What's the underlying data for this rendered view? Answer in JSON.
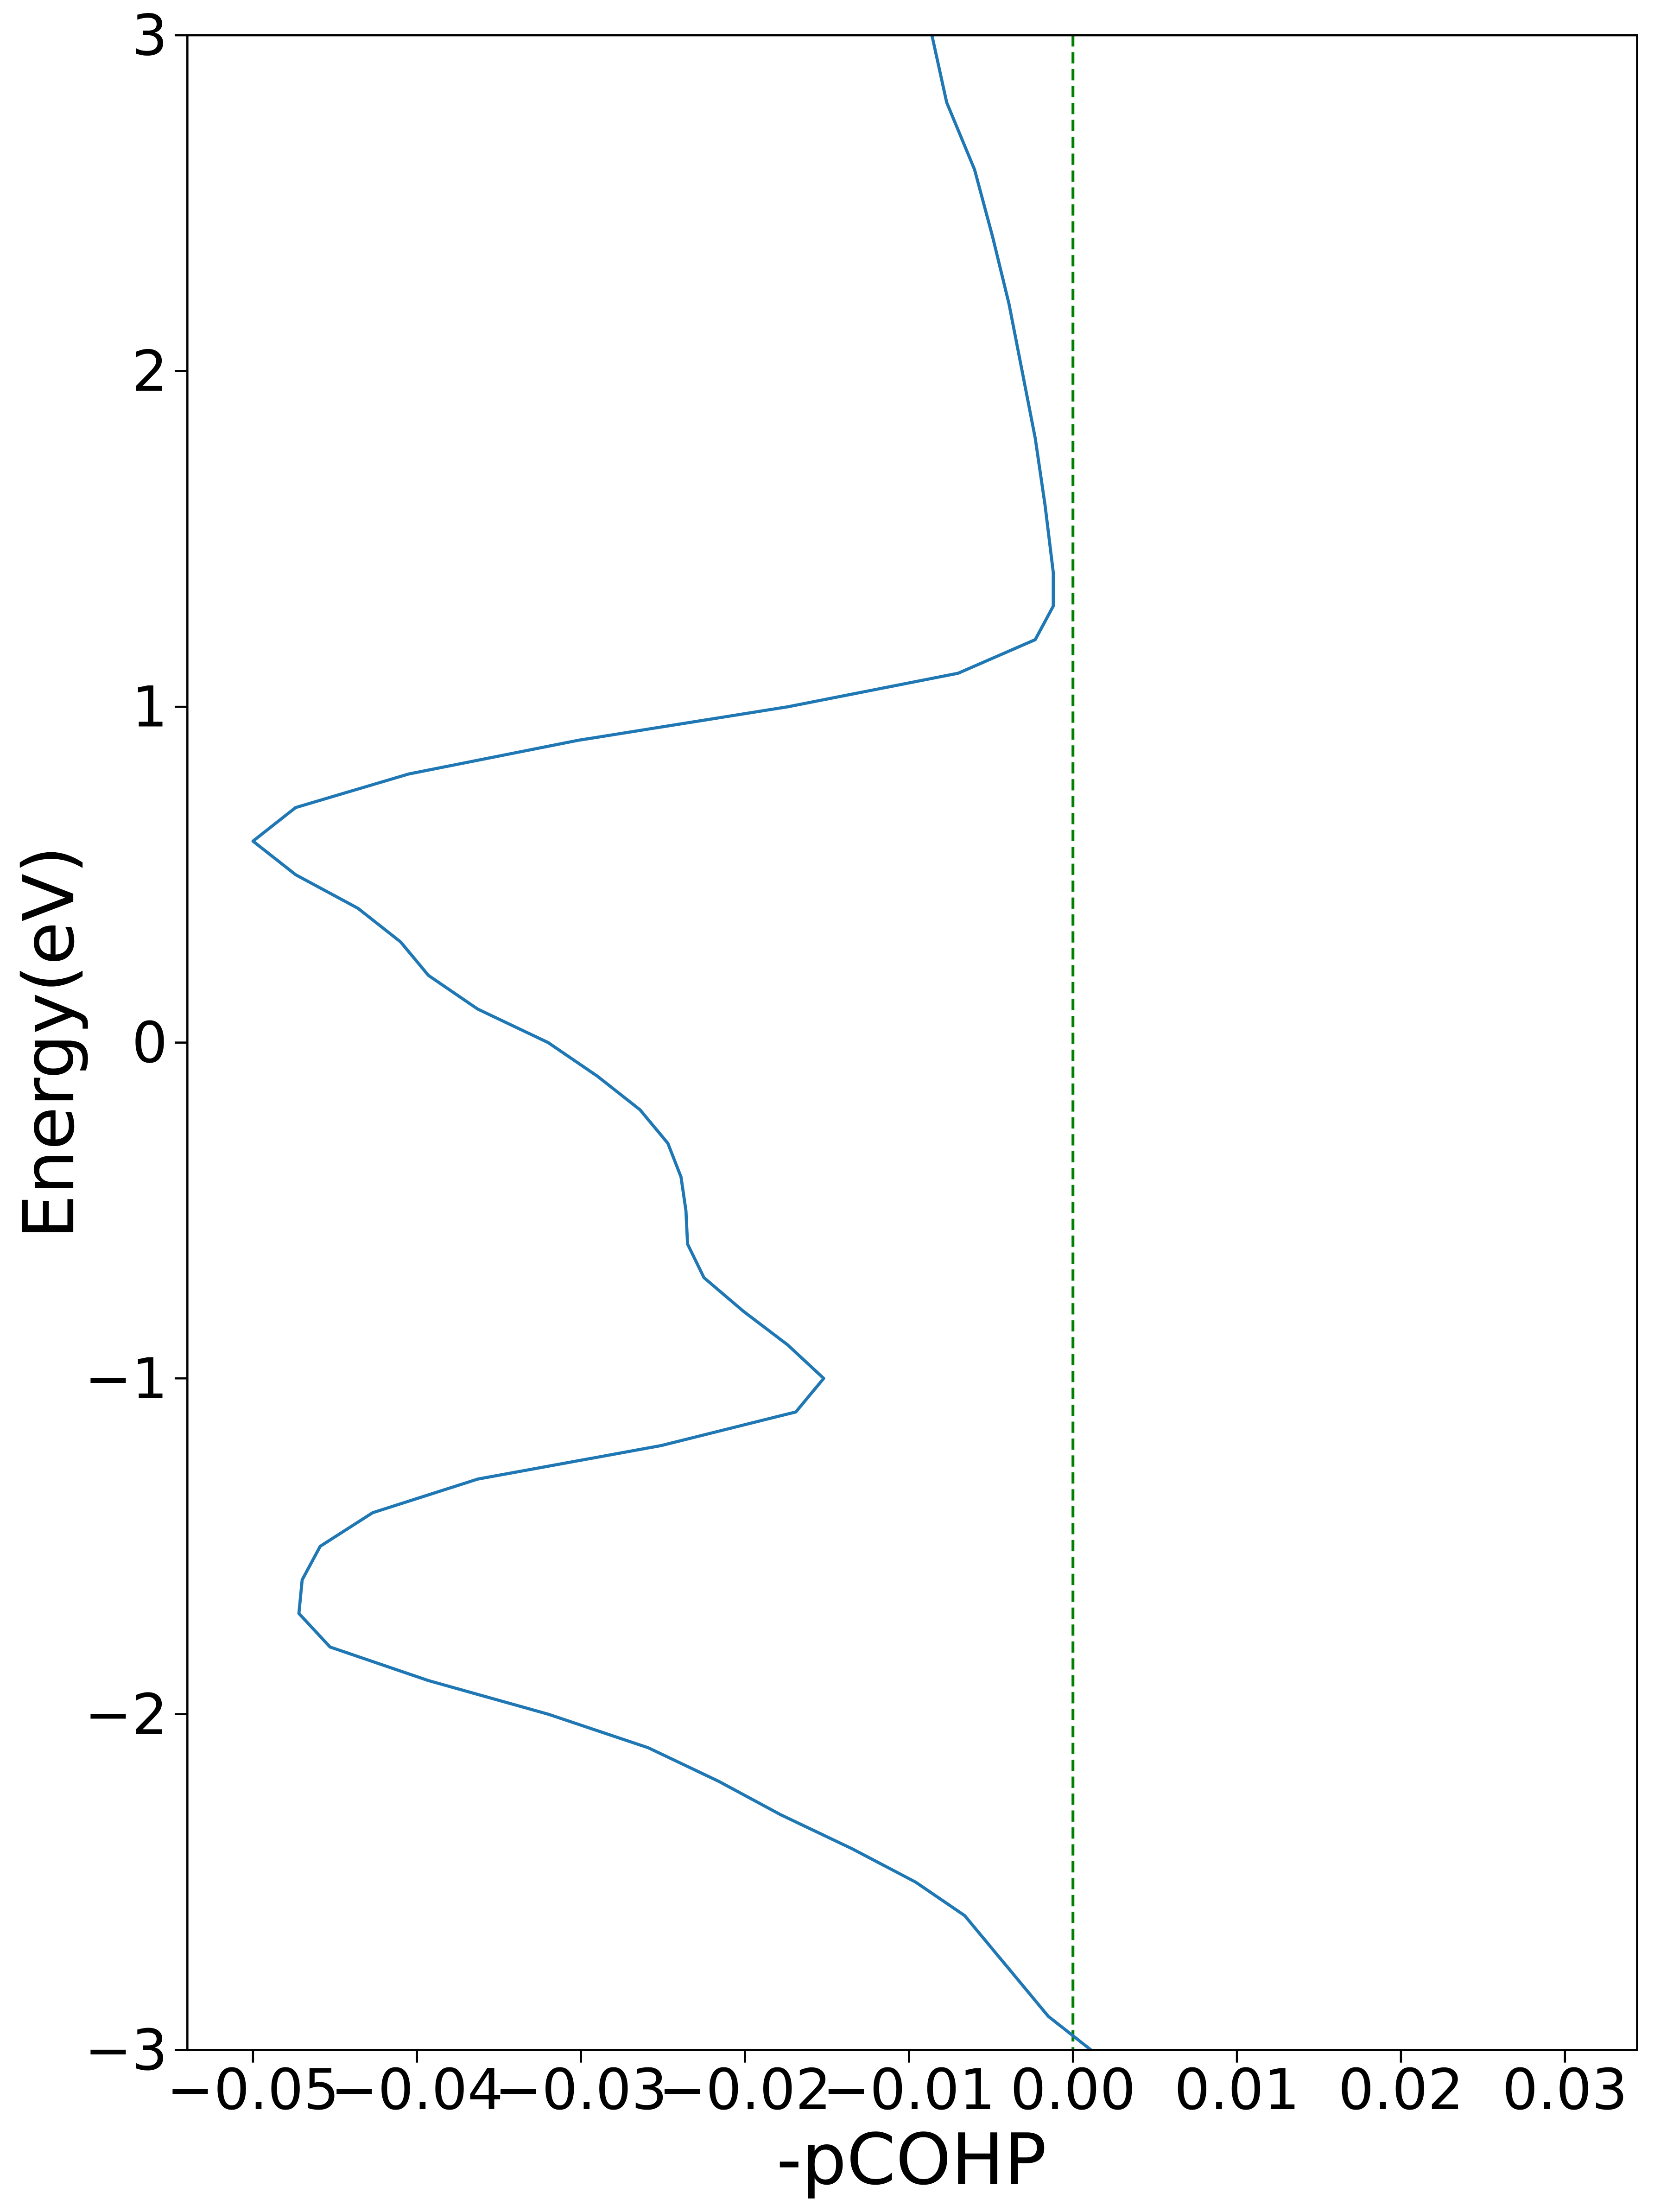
{
  "chart_data": {
    "type": "line",
    "xlabel": "-pCOHP",
    "ylabel": "Energy(eV)",
    "orientation": "horizontal",
    "energy": [
      3.0,
      2.8,
      2.6,
      2.4,
      2.2,
      2.0,
      1.8,
      1.6,
      1.4,
      1.3,
      1.2,
      1.1,
      1.0,
      0.9,
      0.8,
      0.7,
      0.6,
      0.5,
      0.4,
      0.3,
      0.2,
      0.1,
      0.0,
      -0.1,
      -0.2,
      -0.3,
      -0.4,
      -0.5,
      -0.6,
      -0.7,
      -0.8,
      -0.9,
      -1.0,
      -1.1,
      -1.2,
      -1.3,
      -1.4,
      -1.5,
      -1.6,
      -1.7,
      -1.8,
      -1.9,
      -2.0,
      -2.1,
      -2.2,
      -2.3,
      -2.4,
      -2.5,
      -2.6,
      -2.7,
      -2.8,
      -2.9,
      -3.0
    ],
    "series": [
      {
        "color": "#1f77b4",
        "values": [
          -0.0086,
          -0.0077,
          -0.006,
          -0.0049,
          -0.0039,
          -0.0031,
          -0.0023,
          -0.0017,
          -0.0012,
          -0.0012,
          -0.0023,
          -0.007,
          -0.0174,
          -0.0302,
          -0.0405,
          -0.0474,
          -0.05,
          -0.0474,
          -0.0436,
          -0.041,
          -0.0393,
          -0.0363,
          -0.032,
          -0.029,
          -0.0264,
          -0.0247,
          -0.0239,
          -0.0236,
          -0.0235,
          -0.0225,
          -0.0201,
          -0.0174,
          -0.0152,
          -0.0169,
          -0.0251,
          -0.0363,
          -0.0427,
          -0.0459,
          -0.047,
          -0.0472,
          -0.0453,
          -0.0393,
          -0.032,
          -0.0259,
          -0.0216,
          -0.0178,
          -0.0135,
          -0.0096,
          -0.0066,
          -0.0049,
          -0.0032,
          -0.0015,
          0.0011
        ]
      }
    ],
    "reference_line": {
      "value": 0,
      "color": "#008000",
      "style": "dashed"
    },
    "xlim": [
      -0.054,
      0.0344
    ],
    "ylim": [
      -3,
      3
    ],
    "xticks": [
      {
        "value": -0.05,
        "label": "−0.05"
      },
      {
        "value": -0.04,
        "label": "−0.04"
      },
      {
        "value": -0.03,
        "label": "−0.03"
      },
      {
        "value": -0.02,
        "label": "−0.02"
      },
      {
        "value": -0.01,
        "label": "−0.01"
      },
      {
        "value": 0,
        "label": "0.00"
      },
      0.01,
      0.02,
      0.03
    ],
    "yticks": [
      {
        "value": -3,
        "label": "−3"
      },
      {
        "value": -2,
        "label": "−2"
      },
      {
        "value": -1,
        "label": "−1"
      },
      0,
      1,
      2,
      3
    ],
    "grid": false
  }
}
